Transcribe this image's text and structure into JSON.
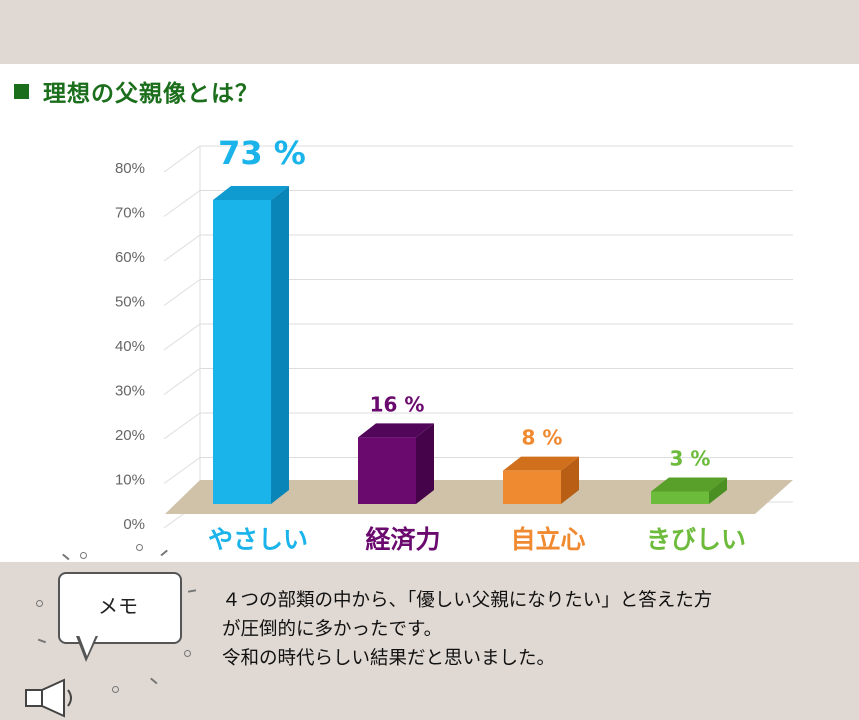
{
  "title": "理想の父親像とは？",
  "chart_data": {
    "type": "bar",
    "categories": [
      "やさしい",
      "経済力",
      "自立心",
      "きびしい"
    ],
    "values": [
      73,
      16,
      8,
      3
    ],
    "value_labels": [
      "73 %",
      "16 %",
      "8 %",
      "3 %"
    ],
    "y_ticks": [
      "0%",
      "10%",
      "20%",
      "30%",
      "40%",
      "50%",
      "60%",
      "70%",
      "80%"
    ],
    "ylim": [
      0,
      80
    ],
    "grid": true,
    "colors": [
      "#1ab4ea",
      "#6a0a6e",
      "#f08a30",
      "#6dbb3a"
    ],
    "side_colors": [
      "#0a85b8",
      "#45034a",
      "#b85e15",
      "#4a8f22"
    ],
    "top_colors": [
      "#0f9ad0",
      "#52065a",
      "#d0701c",
      "#59a02a"
    ],
    "label_colors": [
      "#1ab4ea",
      "#6a0a6e",
      "#f08a30",
      "#6dbb3a"
    ],
    "floor_color": "#cfc2a8",
    "grid_color": "#dddddd"
  },
  "memo": {
    "label": "メモ",
    "lines": [
      "４つの部類の中から、「優しい父親になりたい」と答えた方",
      "が圧倒的に多かったです。",
      "令和の時代らしい結果だと思いました。"
    ],
    "icon": "megaphone-icon"
  }
}
